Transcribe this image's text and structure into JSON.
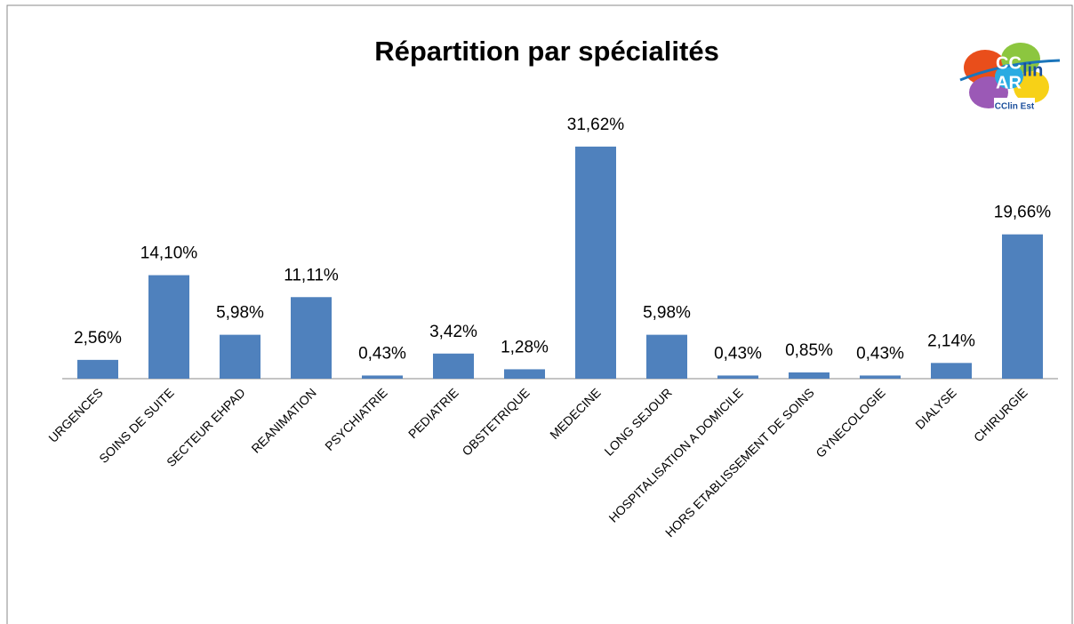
{
  "chart_data": {
    "type": "bar",
    "title": "Répartition par spécialités",
    "categories": [
      "URGENCES",
      "SOINS DE SUITE",
      "SECTEUR EHPAD",
      "REANIMATION",
      "PSYCHIATRIE",
      "PEDIATRIE",
      "OBSTETRIQUE",
      "MEDECINE",
      "LONG SEJOUR",
      "HOSPITALISATION A DOMICILE",
      "HORS ETABLISSEMENT DE SOINS",
      "GYNECOLOGIE",
      "DIALYSE",
      "CHIRURGIE"
    ],
    "values": [
      2.56,
      14.1,
      5.98,
      11.11,
      0.43,
      3.42,
      1.28,
      31.62,
      5.98,
      0.43,
      0.85,
      0.43,
      2.14,
      19.66
    ],
    "value_labels": [
      "2,56%",
      "14,10%",
      "5,98%",
      "11,11%",
      "0,43%",
      "3,42%",
      "1,28%",
      "31,62%",
      "5,98%",
      "0,43%",
      "0,85%",
      "0,43%",
      "2,14%",
      "19,66%"
    ],
    "color": "#4f81bd",
    "ylim": [
      0,
      35
    ]
  },
  "logo": {
    "lines": [
      "CC",
      "lin",
      "AR"
    ],
    "caption": "CClin Est"
  }
}
